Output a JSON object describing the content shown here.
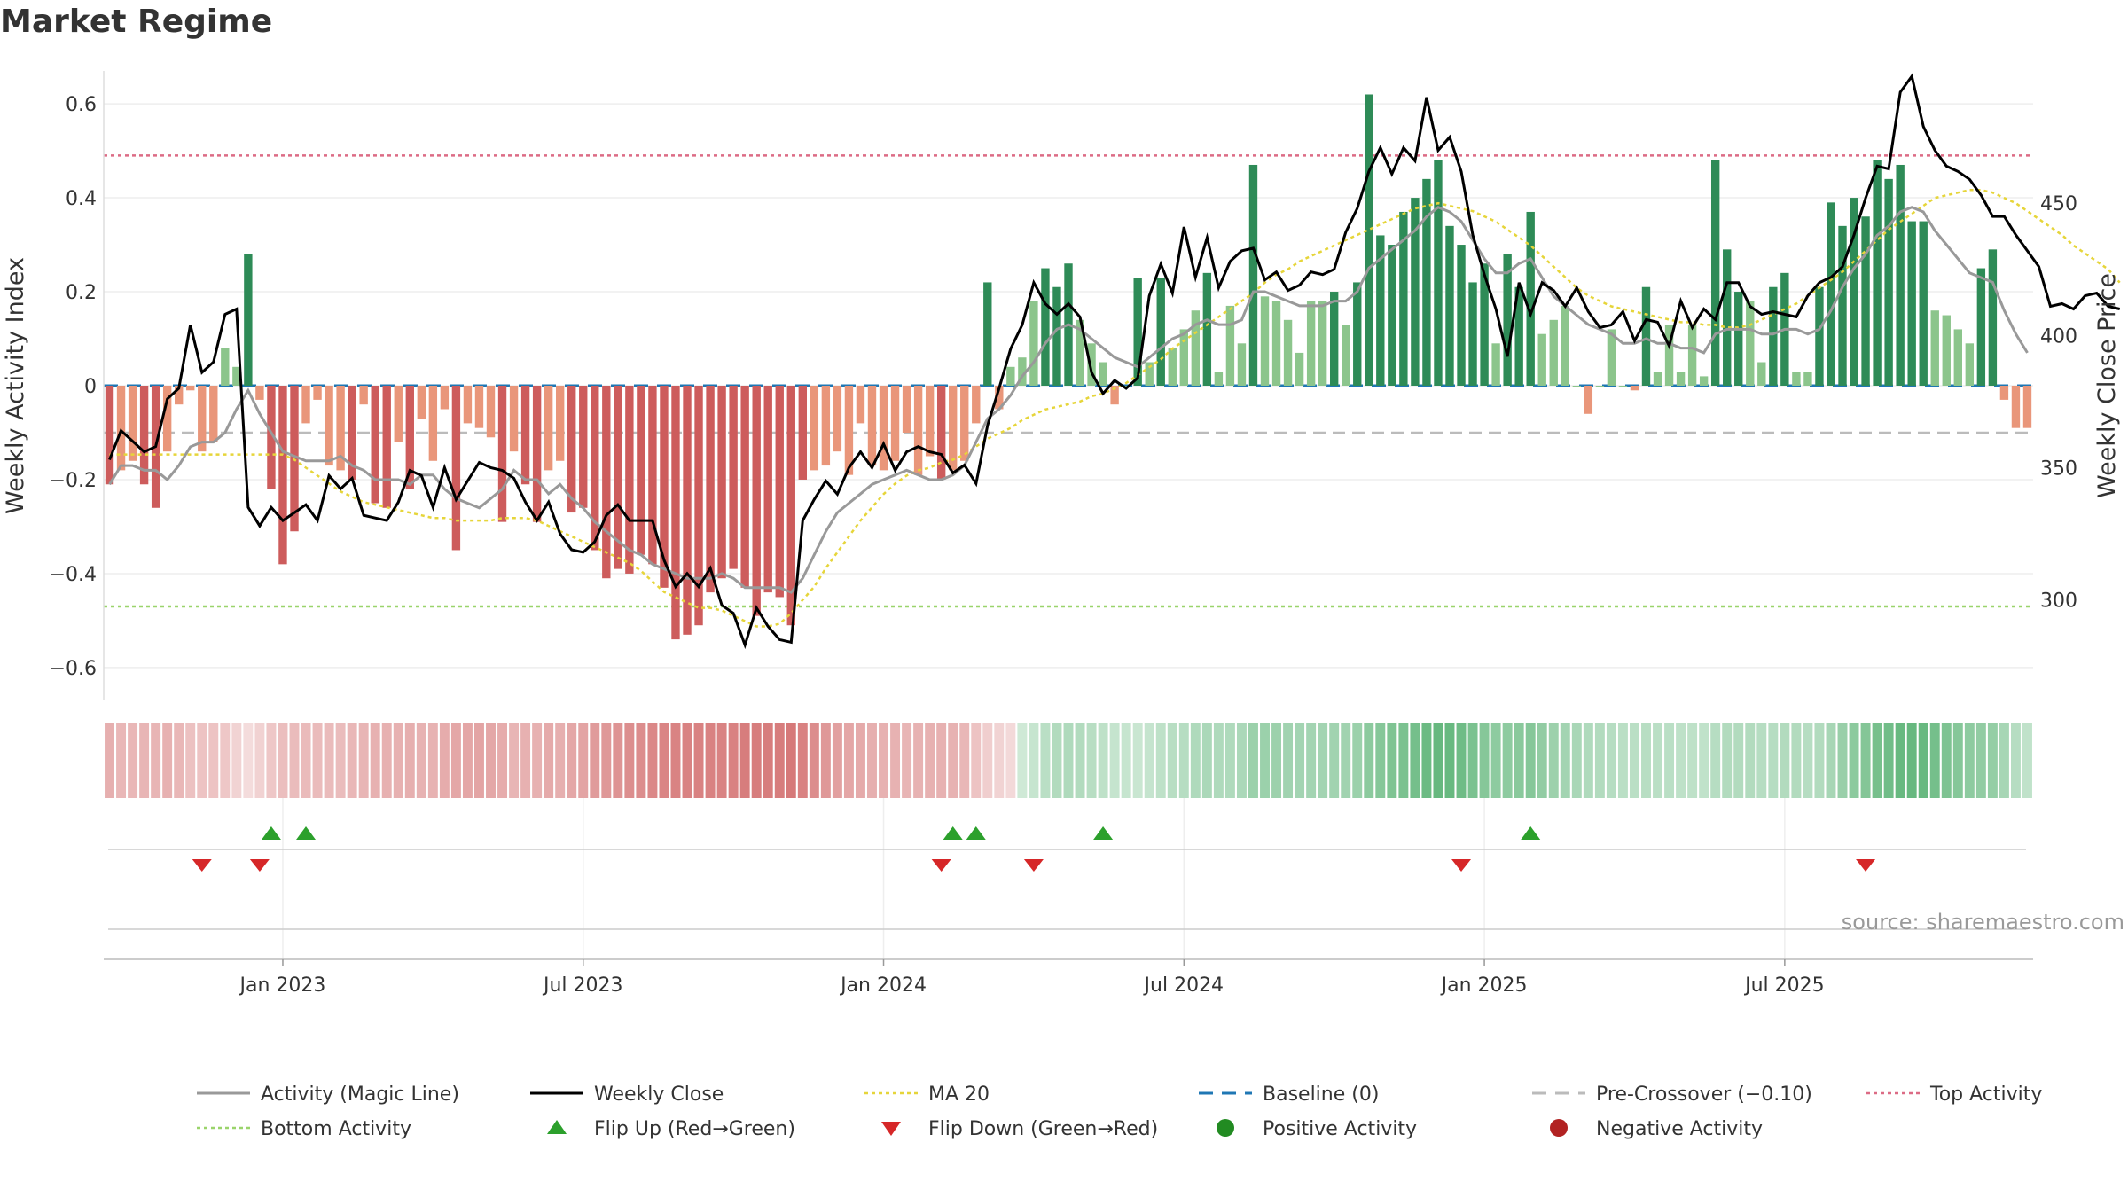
{
  "title": "Market Regime",
  "source": "source: sharemaestro.com",
  "colors": {
    "pos_strong": "#2e8b57",
    "pos_light": "#8cc58c",
    "neg_strong": "#cd5c5c",
    "neg_light": "#e9967a",
    "magic": "#999999",
    "close": "#000000",
    "ma": "#e6d53a",
    "baseline": "#1f77b4",
    "precross": "#bbbbbb",
    "top": "#dc6b85",
    "bottom": "#9ad46b",
    "flip_up": "#2ca02c",
    "flip_down": "#d62728",
    "pos_dot": "#228b22",
    "neg_dot": "#b22222"
  },
  "chart_data": {
    "type": "bar",
    "title": "Market Regime",
    "ylabel_left": "Weekly Activity Index",
    "ylabel_right": "Weekly Close Price",
    "ylim_left": [
      -0.67,
      0.67
    ],
    "ylim_right": [
      262,
      500
    ],
    "yticks_left": [
      {
        "value": 0.6,
        "label": "0.6"
      },
      {
        "value": 0.4,
        "label": "0.4"
      },
      {
        "value": 0.2,
        "label": "0.2"
      },
      {
        "value": 0,
        "label": "0"
      },
      {
        "value": -0.2,
        "label": "−0.2"
      },
      {
        "value": -0.4,
        "label": "−0.4"
      },
      {
        "value": -0.6,
        "label": "−0.6"
      }
    ],
    "yticks_right": [
      {
        "value": 450,
        "label": "450"
      },
      {
        "value": 400,
        "label": "400"
      },
      {
        "value": 350,
        "label": "350"
      },
      {
        "value": 300,
        "label": "300"
      }
    ],
    "x_ticks": [
      {
        "index": 15,
        "label": "Jan 2023"
      },
      {
        "index": 41,
        "label": "Jul 2023"
      },
      {
        "index": 67,
        "label": "Jan 2024"
      },
      {
        "index": 93,
        "label": "Jul 2024"
      },
      {
        "index": 119,
        "label": "Jan 2025"
      },
      {
        "index": 145,
        "label": "Jul 2025"
      }
    ],
    "reference_lines": {
      "baseline": 0,
      "pre_crossover": -0.1,
      "top_activity": 0.49,
      "bottom_activity": -0.47
    },
    "activity": [
      -0.21,
      -0.18,
      -0.16,
      -0.21,
      -0.26,
      -0.14,
      -0.04,
      -0.01,
      -0.14,
      -0.12,
      0.08,
      0.04,
      0.28,
      -0.03,
      -0.22,
      -0.38,
      -0.31,
      -0.08,
      -0.03,
      -0.17,
      -0.18,
      -0.2,
      -0.04,
      -0.25,
      -0.26,
      -0.12,
      -0.22,
      -0.07,
      -0.16,
      -0.05,
      -0.35,
      -0.08,
      -0.09,
      -0.11,
      -0.29,
      -0.14,
      -0.21,
      -0.29,
      -0.18,
      -0.16,
      -0.27,
      -0.26,
      -0.35,
      -0.41,
      -0.39,
      -0.4,
      -0.36,
      -0.38,
      -0.43,
      -0.54,
      -0.53,
      -0.51,
      -0.44,
      -0.41,
      -0.39,
      -0.43,
      -0.49,
      -0.44,
      -0.45,
      -0.51,
      -0.2,
      -0.18,
      -0.17,
      -0.14,
      -0.19,
      -0.08,
      -0.17,
      -0.18,
      -0.16,
      -0.1,
      -0.19,
      -0.15,
      -0.2,
      -0.18,
      -0.16,
      -0.08,
      0.22,
      -0.05,
      0.04,
      0.06,
      0.18,
      0.25,
      0.21,
      0.26,
      0.14,
      0.09,
      0.05,
      -0.04,
      0.0,
      0.23,
      0.05,
      0.23,
      0.08,
      0.12,
      0.16,
      0.24,
      0.03,
      0.17,
      0.09,
      0.47,
      0.19,
      0.18,
      0.14,
      0.07,
      0.18,
      0.18,
      0.2,
      0.13,
      0.22,
      0.62,
      0.32,
      0.3,
      0.37,
      0.4,
      0.44,
      0.48,
      0.34,
      0.3,
      0.22,
      0.26,
      0.09,
      0.28,
      0.21,
      0.37,
      0.11,
      0.14,
      0.17,
      0.0,
      -0.06,
      0.0,
      0.12,
      0.0,
      -0.01,
      0.21,
      0.03,
      0.13,
      0.03,
      0.13,
      0.02,
      0.48,
      0.29,
      0.2,
      0.18,
      0.05,
      0.21,
      0.24,
      0.03,
      0.03,
      0.21,
      0.39,
      0.34,
      0.4,
      0.36,
      0.48,
      0.44,
      0.47,
      0.35,
      0.35,
      0.16,
      0.15,
      0.12,
      0.09,
      0.25,
      0.29,
      -0.03,
      -0.09,
      -0.09
    ],
    "magic_line": [
      -0.21,
      -0.17,
      -0.17,
      -0.18,
      -0.18,
      -0.2,
      -0.17,
      -0.13,
      -0.12,
      -0.12,
      -0.1,
      -0.05,
      -0.01,
      -0.06,
      -0.1,
      -0.14,
      -0.15,
      -0.16,
      -0.16,
      -0.16,
      -0.15,
      -0.17,
      -0.18,
      -0.2,
      -0.2,
      -0.2,
      -0.21,
      -0.19,
      -0.19,
      -0.22,
      -0.24,
      -0.25,
      -0.26,
      -0.24,
      -0.22,
      -0.18,
      -0.2,
      -0.2,
      -0.23,
      -0.21,
      -0.24,
      -0.26,
      -0.29,
      -0.31,
      -0.33,
      -0.35,
      -0.36,
      -0.38,
      -0.39,
      -0.4,
      -0.41,
      -0.41,
      -0.41,
      -0.4,
      -0.41,
      -0.43,
      -0.43,
      -0.43,
      -0.43,
      -0.44,
      -0.41,
      -0.36,
      -0.31,
      -0.27,
      -0.25,
      -0.23,
      -0.21,
      -0.2,
      -0.19,
      -0.18,
      -0.19,
      -0.2,
      -0.2,
      -0.19,
      -0.17,
      -0.12,
      -0.07,
      -0.05,
      -0.02,
      0.02,
      0.05,
      0.09,
      0.12,
      0.13,
      0.12,
      0.1,
      0.08,
      0.06,
      0.05,
      0.04,
      0.06,
      0.08,
      0.1,
      0.11,
      0.13,
      0.14,
      0.13,
      0.13,
      0.14,
      0.2,
      0.2,
      0.19,
      0.18,
      0.17,
      0.17,
      0.17,
      0.18,
      0.18,
      0.2,
      0.25,
      0.27,
      0.29,
      0.31,
      0.33,
      0.36,
      0.38,
      0.37,
      0.35,
      0.31,
      0.27,
      0.24,
      0.24,
      0.26,
      0.27,
      0.23,
      0.19,
      0.17,
      0.15,
      0.13,
      0.12,
      0.11,
      0.09,
      0.09,
      0.1,
      0.09,
      0.09,
      0.08,
      0.08,
      0.07,
      0.11,
      0.12,
      0.12,
      0.12,
      0.11,
      0.11,
      0.12,
      0.12,
      0.11,
      0.12,
      0.16,
      0.21,
      0.25,
      0.28,
      0.32,
      0.34,
      0.37,
      0.38,
      0.37,
      0.33,
      0.3,
      0.27,
      0.24,
      0.23,
      0.22,
      0.16,
      0.11,
      0.07
    ],
    "weekly_close": [
      353,
      364,
      360,
      356,
      358,
      376,
      380,
      404,
      386,
      390,
      408,
      410,
      335,
      328,
      335,
      330,
      333,
      336,
      330,
      347,
      342,
      346,
      332,
      331,
      330,
      337,
      349,
      347,
      335,
      350,
      338,
      345,
      352,
      350,
      349,
      346,
      337,
      330,
      337,
      325,
      319,
      318,
      322,
      332,
      336,
      330,
      330,
      330,
      315,
      305,
      310,
      305,
      312,
      298,
      295,
      283,
      297,
      290,
      285,
      284,
      330,
      338,
      345,
      340,
      350,
      356,
      350,
      359,
      349,
      356,
      358,
      356,
      355,
      348,
      351,
      344,
      366,
      380,
      395,
      404,
      420,
      412,
      408,
      412,
      407,
      386,
      378,
      383,
      380,
      384,
      415,
      427,
      416,
      441,
      422,
      437,
      418,
      428,
      432,
      433,
      421,
      424,
      417,
      419,
      424,
      423,
      425,
      439,
      448,
      462,
      471,
      461,
      471,
      466,
      490,
      470,
      475,
      462,
      438,
      423,
      410,
      392,
      420,
      408,
      420,
      417,
      411,
      418,
      409,
      403,
      404,
      409,
      398,
      406,
      405,
      396,
      413,
      403,
      410,
      406,
      420,
      420,
      411,
      408,
      409,
      408,
      407,
      415,
      420,
      422,
      426,
      438,
      452,
      464,
      463,
      492,
      498,
      479,
      470,
      464,
      462,
      459,
      453,
      445,
      445,
      438,
      432,
      426,
      411,
      412,
      410,
      415,
      416,
      411,
      410
    ],
    "ma20": [
      355,
      355,
      355,
      355,
      355,
      355,
      355,
      355,
      355,
      355,
      355,
      355,
      355,
      355,
      355,
      355,
      353,
      350,
      347,
      344,
      341,
      339,
      337,
      336,
      335,
      334,
      333,
      332,
      331,
      331,
      330,
      330,
      330,
      330,
      331,
      331,
      331,
      330,
      328,
      326,
      324,
      322,
      320,
      318,
      316,
      314,
      311,
      307,
      303,
      301,
      299,
      297,
      297,
      296,
      294,
      292,
      290,
      290,
      291,
      295,
      300,
      305,
      312,
      318,
      324,
      330,
      335,
      340,
      344,
      347,
      349,
      350,
      352,
      353,
      355,
      358,
      361,
      363,
      365,
      368,
      370,
      372,
      373,
      374,
      375,
      377,
      378,
      380,
      382,
      385,
      388,
      391,
      395,
      398,
      401,
      404,
      407,
      410,
      413,
      416,
      420,
      423,
      425,
      428,
      430,
      432,
      434,
      436,
      438,
      440,
      442,
      444,
      446,
      448,
      449,
      450,
      449,
      448,
      447,
      445,
      443,
      440,
      437,
      434,
      430,
      426,
      422,
      418,
      415,
      413,
      411,
      410,
      409,
      408,
      407,
      406,
      405,
      405,
      404,
      404,
      403,
      403,
      404,
      406,
      408,
      410,
      412,
      415,
      418,
      421,
      424,
      428,
      432,
      436,
      440,
      443,
      446,
      449,
      452,
      453,
      454,
      455,
      455,
      454,
      452,
      450,
      447,
      444,
      441,
      438,
      434,
      431,
      428,
      425,
      420
    ]
  },
  "regime_strip": {
    "label": ""
  },
  "flips": {
    "up": [
      14,
      17,
      73,
      75,
      86,
      123
    ],
    "down": [
      8,
      13,
      72,
      80,
      117,
      152
    ]
  },
  "legend": [
    {
      "key": "magic",
      "label": "Activity (Magic Line)",
      "style": "line"
    },
    {
      "key": "close",
      "label": "Weekly Close",
      "style": "line"
    },
    {
      "key": "ma",
      "label": "MA 20",
      "style": "dotted"
    },
    {
      "key": "baseline",
      "label": "Baseline (0)",
      "style": "dashed"
    },
    {
      "key": "precross",
      "label": "Pre-Crossover (−0.10)",
      "style": "dashed"
    },
    {
      "key": "top",
      "label": "Top Activity",
      "style": "dotted"
    },
    {
      "key": "bottom",
      "label": "Bottom Activity",
      "style": "dotted"
    },
    {
      "key": "flip_up",
      "label": "Flip Up (Red→Green)",
      "style": "tri-up"
    },
    {
      "key": "flip_down",
      "label": "Flip Down (Green→Red)",
      "style": "tri-down"
    },
    {
      "key": "pos_dot",
      "label": "Positive Activity",
      "style": "dot"
    },
    {
      "key": "neg_dot",
      "label": "Negative Activity",
      "style": "dot"
    }
  ]
}
